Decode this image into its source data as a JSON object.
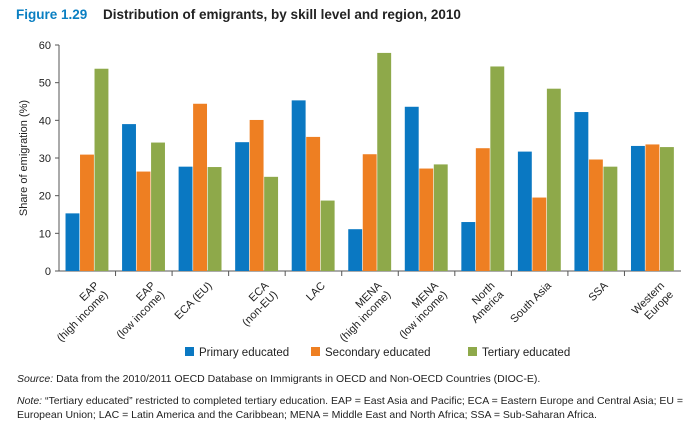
{
  "figure": {
    "number": "Figure 1.29",
    "title": "Distribution of emigrants, by skill level and region, 2010"
  },
  "colors": {
    "primary": "#0a78c2",
    "secondary": "#ee7f22",
    "tertiary": "#8ea94a",
    "accent": "#0a7fc2"
  },
  "chart_data": {
    "type": "bar",
    "ylabel": "Share of emigration (%)",
    "xlabel": "",
    "ylim": [
      0,
      60
    ],
    "yticks": [
      0,
      10,
      20,
      30,
      40,
      50,
      60
    ],
    "grid": false,
    "legend_position": "bottom",
    "categories": [
      [
        "EAP",
        "(high income)"
      ],
      [
        "EAP",
        "(low income)"
      ],
      [
        "ECA (EU)"
      ],
      [
        "ECA",
        "(non-EU)"
      ],
      [
        "LAC"
      ],
      [
        "MENA",
        "(high income)"
      ],
      [
        "MENA",
        "(low income)"
      ],
      [
        "North",
        "America"
      ],
      [
        "South Asia"
      ],
      [
        "SSA"
      ],
      [
        "Western",
        "Europe"
      ]
    ],
    "series": [
      {
        "name": "Primary educated",
        "color": "#0a78c2",
        "values": [
          15.3,
          39,
          27.7,
          34.2,
          45.3,
          11.1,
          43.6,
          13,
          31.7,
          42.2,
          33.2
        ]
      },
      {
        "name": "Secondary educated",
        "color": "#ee7f22",
        "values": [
          30.9,
          26.4,
          44.4,
          40.1,
          35.6,
          31,
          27.2,
          32.6,
          19.5,
          29.6,
          33.6
        ]
      },
      {
        "name": "Tertiary educated",
        "color": "#8ea94a",
        "values": [
          53.7,
          34.1,
          27.6,
          25,
          18.7,
          57.9,
          28.3,
          54.3,
          48.4,
          27.7,
          32.9
        ]
      }
    ]
  },
  "source": {
    "lead": "Source:",
    "text": " Data from the 2010/2011 OECD Database on Immigrants in OECD and Non-OECD Countries (DIOC-E)."
  },
  "note": {
    "lead": "Note:",
    "text": " “Tertiary educated” restricted to completed tertiary education. EAP = East Asia and Pacific; ECA = Eastern Europe and Central Asia; EU = European Union; LAC = Latin America and the Caribbean; MENA = Middle East and North Africa; SSA = Sub-Saharan Africa."
  }
}
